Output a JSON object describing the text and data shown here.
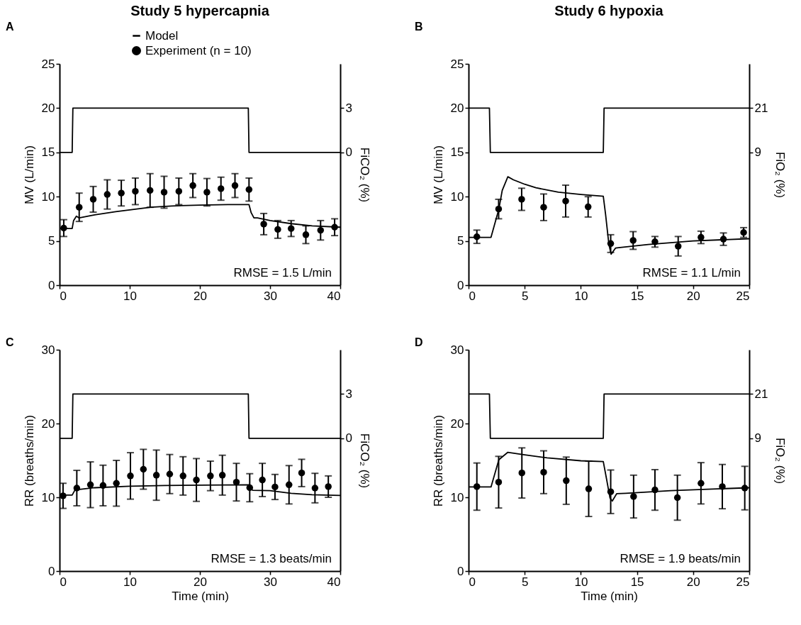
{
  "chart_data": [
    {
      "type": "line",
      "title": "Study 5 hypercapnia",
      "ylabel": "MV (L/min)",
      "y2label": "FiCO₂ (%)",
      "annotations": [
        "A",
        "RMSE = 1.5 L/min"
      ],
      "xlim": [
        0,
        40
      ],
      "xticks": [
        0,
        10,
        20,
        30,
        40
      ],
      "ylim": [
        0,
        25
      ],
      "yticks": [
        0,
        5,
        10,
        15,
        20,
        25
      ],
      "y2lim": [
        -9,
        6
      ],
      "y2ticks": [
        0,
        3
      ],
      "legend": "top",
      "series": [
        {
          "name": "Model",
          "type": "line",
          "color": "#000000",
          "x": [
            0,
            1.8,
            2.0,
            2.4,
            2.8,
            5,
            8,
            10,
            13,
            16,
            20,
            24,
            27,
            27.3,
            27.7,
            28.2,
            30,
            33,
            36,
            40
          ],
          "values": [
            6.4,
            6.4,
            7.3,
            7.8,
            7.6,
            7.95,
            8.3,
            8.5,
            8.8,
            8.95,
            9.05,
            9.1,
            9.1,
            8.2,
            7.6,
            7.6,
            7.3,
            6.95,
            6.7,
            6.55
          ]
        },
        {
          "name": "Experiment (n = 10)",
          "type": "scatter",
          "color": "#000000",
          "x": [
            0.6,
            2.8,
            4.8,
            6.8,
            8.8,
            10.8,
            12.9,
            14.9,
            17,
            19,
            21,
            23,
            25,
            27,
            29.1,
            31.1,
            33,
            35.1,
            37.2,
            39.2
          ],
          "values": [
            6.45,
            8.8,
            9.7,
            10.25,
            10.4,
            10.6,
            10.7,
            10.5,
            10.6,
            11.25,
            10.5,
            10.9,
            11.25,
            10.8,
            6.9,
            6.3,
            6.4,
            5.7,
            6.2,
            6.55
          ],
          "errors": [
            0.95,
            1.6,
            1.45,
            1.65,
            1.45,
            1.5,
            1.9,
            1.8,
            1.5,
            1.35,
            1.55,
            1.3,
            1.35,
            1.3,
            1.2,
            1,
            0.9,
            1,
            1.1,
            0.95
          ]
        },
        {
          "type": "line",
          "axis": "y2",
          "color": "#000000",
          "x": [
            0,
            1.8,
            1.9,
            26.9,
            27.0,
            40
          ],
          "values": [
            0,
            0,
            3,
            3,
            0,
            0
          ]
        }
      ]
    },
    {
      "type": "line",
      "title": "Study 6 hypoxia",
      "ylabel": "MV (L/min)",
      "y2label": "FiO₂ (%)",
      "annotations": [
        "B",
        "RMSE = 1.1 L/min"
      ],
      "xlim": [
        0,
        25
      ],
      "xticks": [
        0,
        5,
        10,
        15,
        20,
        25
      ],
      "ylim": [
        0,
        25
      ],
      "yticks": [
        0,
        5,
        10,
        15,
        20,
        25
      ],
      "y2lim": [
        -27,
        33
      ],
      "y2ticks": [
        9,
        21
      ],
      "legend": "top",
      "series": [
        {
          "name": "Model",
          "type": "line",
          "color": "#000000",
          "x": [
            0,
            2.0,
            2.7,
            3.0,
            3.5,
            4,
            5,
            6,
            8,
            10,
            12,
            12.2,
            12.5,
            12.7,
            13.1,
            13.5,
            16,
            20,
            25
          ],
          "values": [
            5.4,
            5.4,
            8.6,
            10.7,
            12.25,
            11.9,
            11.4,
            11.0,
            10.5,
            10.25,
            10.05,
            8.05,
            4.6,
            3.5,
            4.2,
            4.25,
            4.6,
            5.0,
            5.25
          ]
        },
        {
          "name": "Experiment (n = 10)",
          "type": "scatter",
          "color": "#000000",
          "x": [
            0.74,
            2.68,
            4.73,
            6.69,
            8.65,
            10.65,
            12.66,
            14.66,
            16.6,
            18.67,
            20.7,
            22.7,
            24.5
          ],
          "values": [
            5.47,
            8.6,
            9.7,
            8.8,
            9.5,
            8.85,
            4.7,
            5.05,
            4.9,
            4.4,
            5.4,
            5.2,
            5.95
          ],
          "errors": [
            0.75,
            1.1,
            1.25,
            1.5,
            1.8,
            1.15,
            1.0,
            1.0,
            0.6,
            1.1,
            0.7,
            0.7,
            0.55
          ]
        },
        {
          "type": "line",
          "axis": "y2",
          "color": "#000000",
          "x": [
            0,
            1.86,
            1.94,
            12.0,
            12.07,
            25
          ],
          "values": [
            21,
            21,
            9,
            9,
            21,
            21
          ]
        }
      ]
    },
    {
      "type": "line",
      "xlabel": "Time (min)",
      "ylabel": "RR (breaths/min)",
      "y2label": "FiCO₂ (%)",
      "annotations": [
        "C",
        "RMSE = 1.3 beats/min"
      ],
      "xlim": [
        0,
        40
      ],
      "xticks": [
        0,
        10,
        20,
        30,
        40
      ],
      "ylim": [
        0,
        30
      ],
      "yticks": [
        0,
        10,
        20,
        30
      ],
      "y2lim": [
        -9,
        6
      ],
      "y2ticks": [
        0,
        3
      ],
      "series": [
        {
          "type": "line",
          "color": "#000000",
          "x": [
            0,
            1.8,
            2.2,
            5,
            10,
            15,
            20,
            27,
            27.5,
            30,
            33,
            36,
            40
          ],
          "values": [
            10.3,
            10.3,
            11.0,
            11.3,
            11.5,
            11.6,
            11.65,
            11.7,
            10.95,
            10.9,
            10.55,
            10.35,
            10.25
          ]
        },
        {
          "type": "scatter",
          "color": "#000000",
          "x": [
            0.5,
            2.46,
            4.4,
            6.2,
            8.1,
            10.1,
            11.95,
            13.8,
            15.7,
            17.6,
            19.5,
            21.5,
            23.2,
            25.2,
            27.1,
            28.9,
            30.7,
            32.7,
            34.5,
            36.4,
            38.3
          ],
          "values": [
            10.2,
            11.25,
            11.7,
            11.6,
            11.9,
            12.9,
            13.8,
            13.0,
            13.15,
            12.9,
            12.35,
            12.9,
            13.0,
            12.05,
            11.3,
            12.35,
            11.4,
            11.7,
            13.3,
            11.25,
            11.45
          ],
          "errors": [
            1.7,
            2.4,
            3.1,
            2.75,
            3.1,
            3.15,
            2.7,
            3.4,
            2.65,
            2.6,
            2.9,
            2.0,
            2.7,
            2.55,
            1.9,
            2.25,
            1.7,
            2.6,
            1.85,
            2.0,
            1.45
          ]
        },
        {
          "type": "line",
          "axis": "y2",
          "color": "#000000",
          "x": [
            0,
            1.8,
            1.9,
            26.9,
            27.0,
            40
          ],
          "values": [
            0,
            0,
            3,
            3,
            0,
            0
          ]
        }
      ]
    },
    {
      "type": "line",
      "xlabel": "Time (min)",
      "ylabel": "RR (breaths/min)",
      "y2label": "FiO₂ (%)",
      "annotations": [
        "D",
        "RMSE = 1.9 beats/min"
      ],
      "xlim": [
        0,
        25
      ],
      "xticks": [
        0,
        5,
        10,
        15,
        20,
        25
      ],
      "ylim": [
        0,
        30
      ],
      "yticks": [
        0,
        10,
        20,
        30
      ],
      "y2lim": [
        -27,
        33
      ],
      "y2ticks": [
        9,
        21
      ],
      "series": [
        {
          "type": "line",
          "color": "#000000",
          "x": [
            0,
            2.0,
            2.7,
            3.5,
            5,
            7,
            10,
            12,
            12.3,
            12.6,
            12.8,
            13.2,
            14,
            18,
            25
          ],
          "values": [
            11.4,
            11.4,
            15.1,
            16.1,
            15.75,
            15.35,
            14.95,
            14.85,
            12.4,
            9.9,
            9.5,
            10.5,
            10.55,
            10.9,
            11.3
          ]
        },
        {
          "type": "scatter",
          "color": "#000000",
          "x": [
            0.74,
            2.68,
            4.75,
            6.69,
            8.7,
            10.7,
            12.66,
            14.7,
            16.6,
            18.6,
            20.7,
            22.6,
            24.6
          ],
          "values": [
            11.45,
            12.05,
            13.3,
            13.4,
            12.25,
            11.15,
            10.75,
            10.1,
            11.0,
            9.95,
            11.9,
            11.45,
            11.25
          ],
          "errors": [
            3.2,
            3.5,
            3.4,
            2.9,
            3.2,
            3.75,
            2.95,
            2.9,
            2.75,
            3.05,
            2.8,
            3.0,
            2.95
          ]
        },
        {
          "type": "line",
          "axis": "y2",
          "color": "#000000",
          "x": [
            0,
            1.86,
            1.94,
            12.0,
            12.07,
            25
          ],
          "values": [
            21,
            21,
            9,
            9,
            21,
            21
          ]
        }
      ]
    }
  ]
}
